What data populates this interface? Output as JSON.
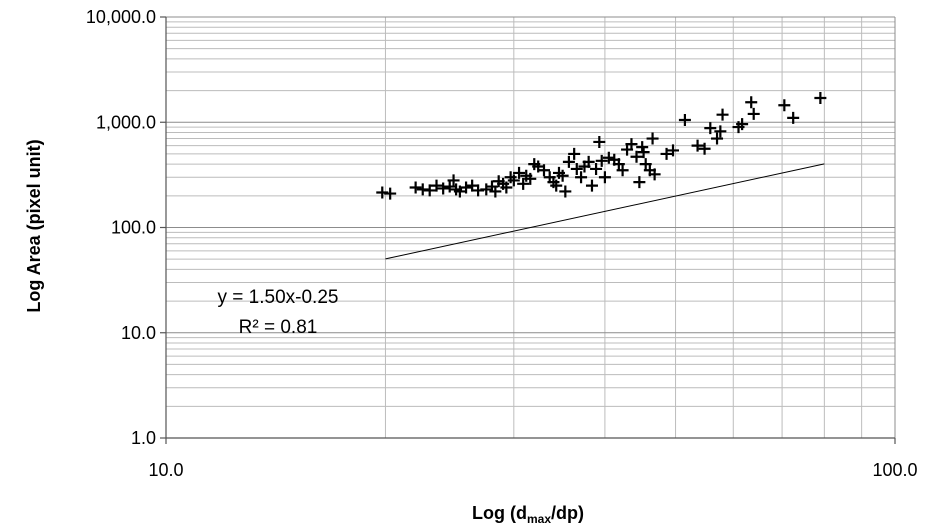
{
  "chart_data": {
    "type": "scatter",
    "x_scale": "log",
    "y_scale": "log",
    "xlim": [
      10,
      100
    ],
    "ylim": [
      1,
      10000
    ],
    "grid": true,
    "legend": "none",
    "xlabel_main": "Log (d",
    "xlabel_sub": "max",
    "xlabel_end": "/dp)",
    "ylabel": "Log Area  (pixel unit)",
    "x_ticks": [
      "10.0",
      "100.0"
    ],
    "y_ticks": [
      "1.0",
      "10.0",
      "100.0",
      "1,000.0",
      "10,000.0"
    ],
    "annotation_equation": "y = 1.50x-0.25",
    "annotation_r2": "R² = 0.81",
    "marker_color": "#000000",
    "trendline": {
      "slope": 1.5,
      "intercept": -0.25,
      "x_range": [
        20,
        80
      ]
    },
    "points": [
      {
        "x": 19.8,
        "y": 215
      },
      {
        "x": 20.3,
        "y": 210
      },
      {
        "x": 22.0,
        "y": 240
      },
      {
        "x": 22.5,
        "y": 230
      },
      {
        "x": 23.0,
        "y": 225
      },
      {
        "x": 23.5,
        "y": 250
      },
      {
        "x": 24.0,
        "y": 235
      },
      {
        "x": 24.5,
        "y": 245
      },
      {
        "x": 24.8,
        "y": 280
      },
      {
        "x": 25.0,
        "y": 230
      },
      {
        "x": 25.3,
        "y": 220
      },
      {
        "x": 25.8,
        "y": 240
      },
      {
        "x": 26.3,
        "y": 250
      },
      {
        "x": 26.8,
        "y": 225
      },
      {
        "x": 27.5,
        "y": 230
      },
      {
        "x": 28.0,
        "y": 245
      },
      {
        "x": 28.3,
        "y": 220
      },
      {
        "x": 28.6,
        "y": 275
      },
      {
        "x": 29.0,
        "y": 260
      },
      {
        "x": 29.3,
        "y": 240
      },
      {
        "x": 29.7,
        "y": 300
      },
      {
        "x": 30.0,
        "y": 280
      },
      {
        "x": 30.5,
        "y": 330
      },
      {
        "x": 30.9,
        "y": 260
      },
      {
        "x": 31.2,
        "y": 310
      },
      {
        "x": 31.6,
        "y": 290
      },
      {
        "x": 32.0,
        "y": 400
      },
      {
        "x": 32.4,
        "y": 380
      },
      {
        "x": 33.0,
        "y": 350
      },
      {
        "x": 33.6,
        "y": 300
      },
      {
        "x": 34.0,
        "y": 270
      },
      {
        "x": 34.3,
        "y": 250
      },
      {
        "x": 34.6,
        "y": 330
      },
      {
        "x": 35.0,
        "y": 310
      },
      {
        "x": 35.3,
        "y": 220
      },
      {
        "x": 35.7,
        "y": 420
      },
      {
        "x": 36.3,
        "y": 500
      },
      {
        "x": 36.6,
        "y": 360
      },
      {
        "x": 37.1,
        "y": 300
      },
      {
        "x": 37.5,
        "y": 380
      },
      {
        "x": 38.0,
        "y": 420
      },
      {
        "x": 38.4,
        "y": 250
      },
      {
        "x": 38.9,
        "y": 360
      },
      {
        "x": 39.3,
        "y": 650
      },
      {
        "x": 39.6,
        "y": 430
      },
      {
        "x": 40.0,
        "y": 300
      },
      {
        "x": 40.5,
        "y": 460
      },
      {
        "x": 41.2,
        "y": 440
      },
      {
        "x": 41.8,
        "y": 400
      },
      {
        "x": 42.3,
        "y": 350
      },
      {
        "x": 42.9,
        "y": 550
      },
      {
        "x": 43.5,
        "y": 620
      },
      {
        "x": 44.2,
        "y": 470
      },
      {
        "x": 44.6,
        "y": 270
      },
      {
        "x": 45.0,
        "y": 580
      },
      {
        "x": 45.2,
        "y": 520
      },
      {
        "x": 45.5,
        "y": 400
      },
      {
        "x": 46.1,
        "y": 350
      },
      {
        "x": 46.5,
        "y": 700
      },
      {
        "x": 46.8,
        "y": 320
      },
      {
        "x": 48.6,
        "y": 500
      },
      {
        "x": 49.6,
        "y": 540
      },
      {
        "x": 51.5,
        "y": 1050
      },
      {
        "x": 53.6,
        "y": 600
      },
      {
        "x": 54.8,
        "y": 560
      },
      {
        "x": 55.8,
        "y": 880
      },
      {
        "x": 57.0,
        "y": 700
      },
      {
        "x": 57.6,
        "y": 820
      },
      {
        "x": 58.0,
        "y": 1180
      },
      {
        "x": 61.0,
        "y": 900
      },
      {
        "x": 61.7,
        "y": 960
      },
      {
        "x": 63.5,
        "y": 1550
      },
      {
        "x": 64.0,
        "y": 1200
      },
      {
        "x": 70.5,
        "y": 1450
      },
      {
        "x": 72.5,
        "y": 1100
      },
      {
        "x": 79.0,
        "y": 1700
      }
    ]
  }
}
